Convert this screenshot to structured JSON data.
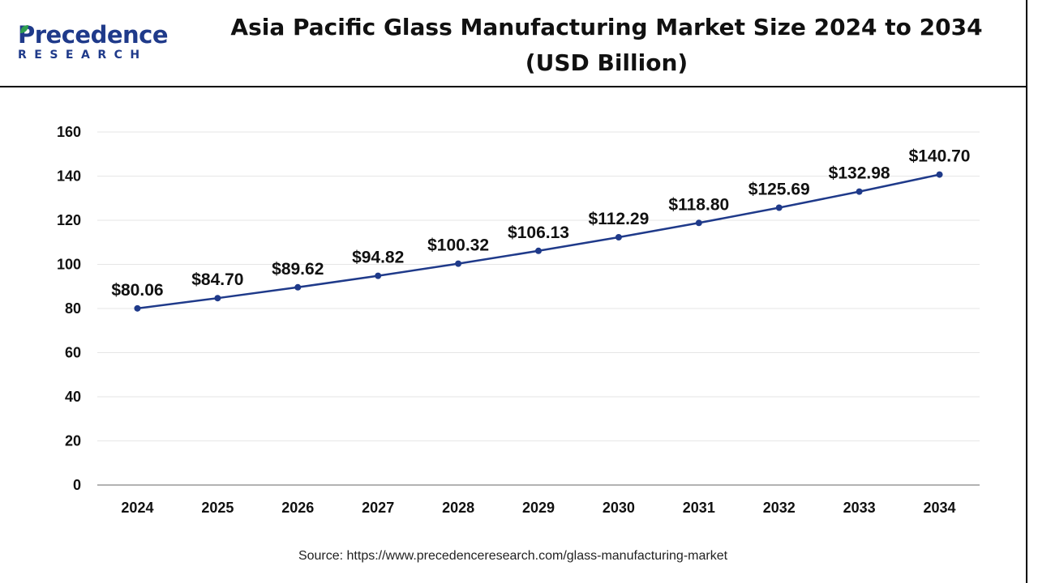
{
  "brand": {
    "name_top": "Precedence",
    "name_bottom": "RESEARCH",
    "colors": {
      "brand_blue": "#1f3a8a",
      "leaf_green": "#2e9e4f"
    },
    "icon": "leaf-icon"
  },
  "header": {
    "title_line1": "Asia Pacific Glass Manufacturing Market Size 2024 to 2034",
    "title_line2": "(USD Billion)"
  },
  "chart_data": {
    "type": "line",
    "title": "Asia Pacific Glass Manufacturing Market Size 2024 to 2034 (USD Billion)",
    "xlabel": "",
    "ylabel": "",
    "categories": [
      "2024",
      "2025",
      "2026",
      "2027",
      "2028",
      "2029",
      "2030",
      "2031",
      "2032",
      "2033",
      "2034"
    ],
    "values": [
      80.06,
      84.7,
      89.62,
      94.82,
      100.32,
      106.13,
      112.29,
      118.8,
      125.69,
      132.98,
      140.7
    ],
    "value_labels": [
      "$80.06",
      "$84.70",
      "$89.62",
      "$94.82",
      "$100.32",
      "$106.13",
      "$112.29",
      "$118.80",
      "$125.69",
      "$132.98",
      "$140.70"
    ],
    "ylim": [
      0,
      160
    ],
    "yticks": [
      0,
      20,
      40,
      60,
      80,
      100,
      120,
      140,
      160
    ],
    "grid": true,
    "legend": "none",
    "line_color": "#1f3a8a"
  },
  "footer": {
    "source": "Source: https://www.precedenceresearch.com/glass-manufacturing-market"
  }
}
